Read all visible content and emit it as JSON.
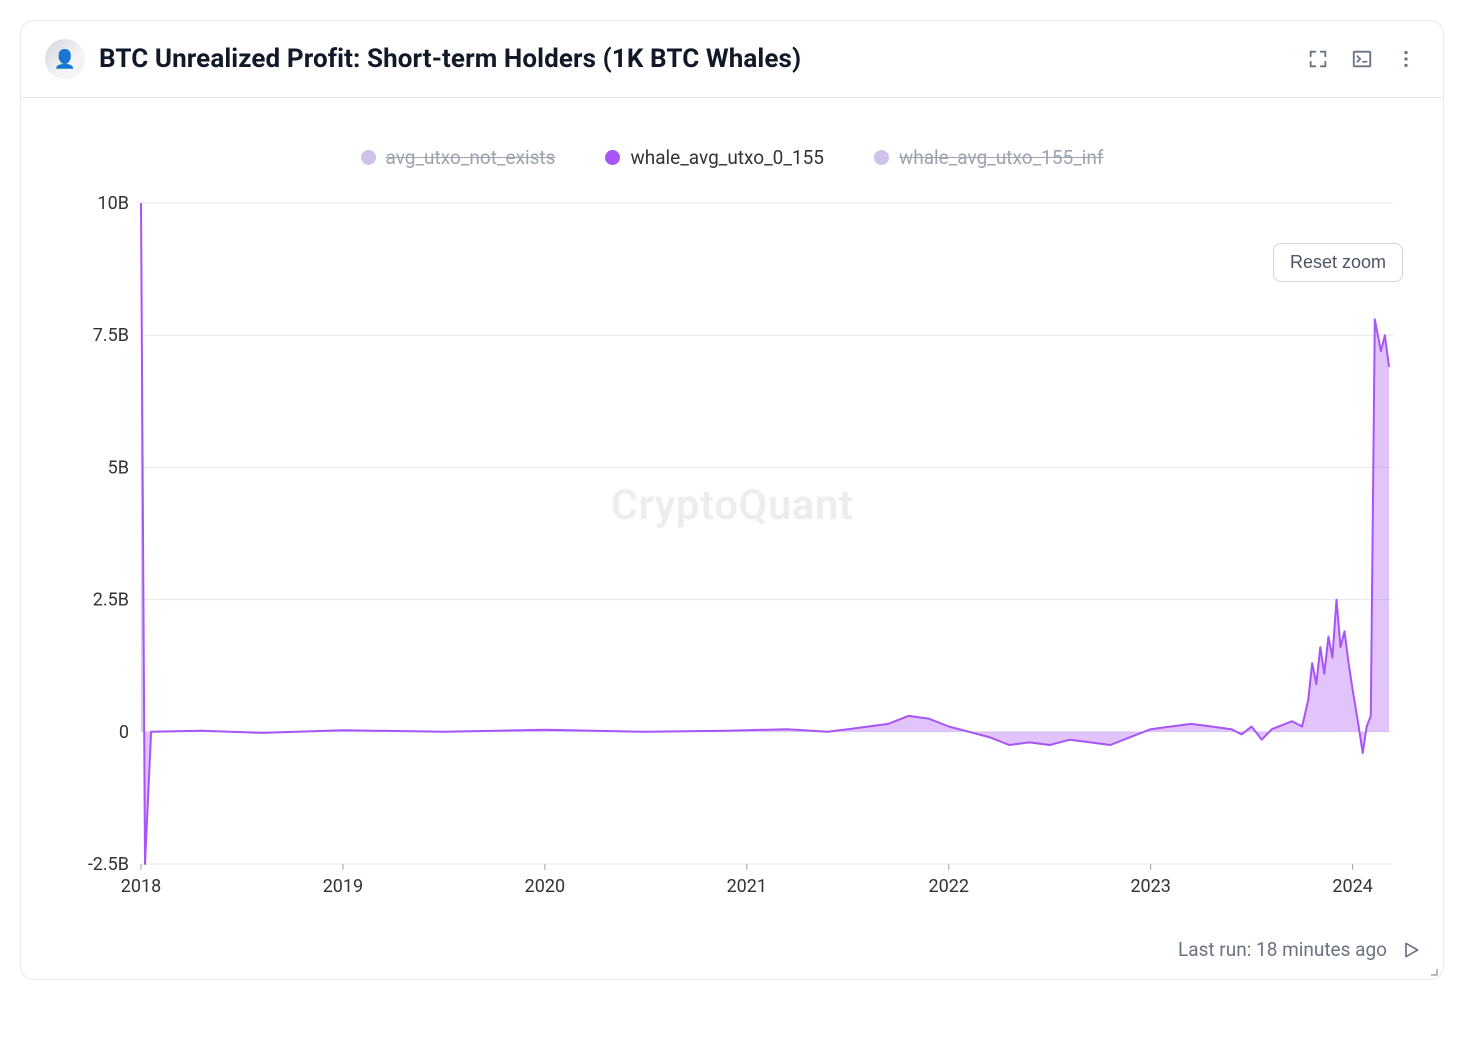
{
  "header": {
    "title": "BTC Unrealized Profit: Short-term Holders (1K BTC Whales)",
    "avatar_glyph": "👤"
  },
  "legend": {
    "items": [
      {
        "name": "avg_utxo_not_exists",
        "label": "avg_utxo_not_exists",
        "color": "#cfc2e8",
        "active": false
      },
      {
        "name": "whale_avg_utxo_0_155",
        "label": "whale_avg_utxo_0_155",
        "color": "#a855f7",
        "active": true
      },
      {
        "name": "whale_avg_utxo_155_inf",
        "label": "whale_avg_utxo_155_inf",
        "color": "#cfc2e8",
        "active": false
      }
    ]
  },
  "chart": {
    "type": "area",
    "watermark": "CryptoQuant",
    "reset_zoom_label": "Reset zoom",
    "series_color": "#a855f7",
    "series_fill": "rgba(168,85,247,0.35)",
    "background_color": "#ffffff",
    "grid_color": "#e5e7eb",
    "line_width": 2,
    "x": {
      "min": 2018,
      "max": 2024.2,
      "ticks": [
        2018,
        2019,
        2020,
        2021,
        2022,
        2023,
        2024
      ]
    },
    "y": {
      "min": -2.5,
      "max": 10,
      "ticks": [
        -2.5,
        0,
        2.5,
        5,
        7.5,
        10
      ],
      "tick_labels": [
        "-2.5B",
        "0",
        "2.5B",
        "5B",
        "7.5B",
        "10B"
      ]
    },
    "data": [
      [
        2018.0,
        10.0
      ],
      [
        2018.02,
        -2.5
      ],
      [
        2018.05,
        0.0
      ],
      [
        2018.3,
        0.02
      ],
      [
        2018.6,
        -0.02
      ],
      [
        2019.0,
        0.03
      ],
      [
        2019.5,
        0.0
      ],
      [
        2020.0,
        0.04
      ],
      [
        2020.5,
        0.0
      ],
      [
        2020.9,
        0.02
      ],
      [
        2021.2,
        0.05
      ],
      [
        2021.4,
        0.0
      ],
      [
        2021.5,
        0.05
      ],
      [
        2021.7,
        0.15
      ],
      [
        2021.8,
        0.3
      ],
      [
        2021.9,
        0.25
      ],
      [
        2022.0,
        0.1
      ],
      [
        2022.1,
        0.0
      ],
      [
        2022.2,
        -0.1
      ],
      [
        2022.3,
        -0.25
      ],
      [
        2022.4,
        -0.2
      ],
      [
        2022.5,
        -0.25
      ],
      [
        2022.6,
        -0.15
      ],
      [
        2022.7,
        -0.2
      ],
      [
        2022.8,
        -0.25
      ],
      [
        2022.9,
        -0.1
      ],
      [
        2023.0,
        0.05
      ],
      [
        2023.1,
        0.1
      ],
      [
        2023.2,
        0.15
      ],
      [
        2023.3,
        0.1
      ],
      [
        2023.4,
        0.05
      ],
      [
        2023.45,
        -0.05
      ],
      [
        2023.5,
        0.1
      ],
      [
        2023.55,
        -0.15
      ],
      [
        2023.6,
        0.05
      ],
      [
        2023.7,
        0.2
      ],
      [
        2023.75,
        0.1
      ],
      [
        2023.78,
        0.6
      ],
      [
        2023.8,
        1.3
      ],
      [
        2023.82,
        0.9
      ],
      [
        2023.84,
        1.6
      ],
      [
        2023.86,
        1.1
      ],
      [
        2023.88,
        1.8
      ],
      [
        2023.9,
        1.4
      ],
      [
        2023.92,
        2.5
      ],
      [
        2023.94,
        1.6
      ],
      [
        2023.96,
        1.9
      ],
      [
        2023.98,
        1.3
      ],
      [
        2024.0,
        0.8
      ],
      [
        2024.03,
        0.1
      ],
      [
        2024.05,
        -0.4
      ],
      [
        2024.07,
        0.1
      ],
      [
        2024.09,
        0.3
      ],
      [
        2024.11,
        7.8
      ],
      [
        2024.14,
        7.2
      ],
      [
        2024.16,
        7.5
      ],
      [
        2024.18,
        6.9
      ]
    ]
  },
  "footer": {
    "last_run": "Last run: 18 minutes ago"
  }
}
